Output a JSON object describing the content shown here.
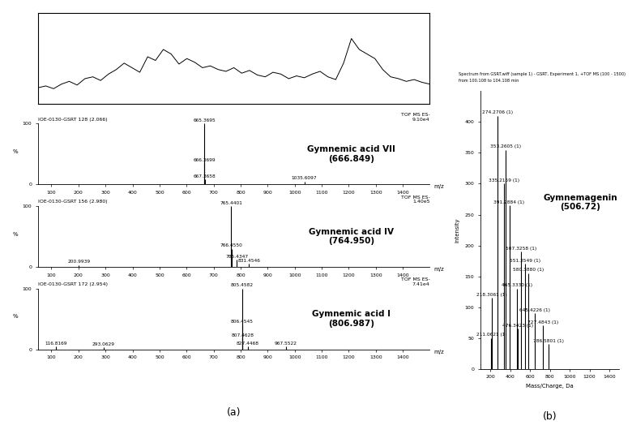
{
  "panel_labels": [
    "(a)",
    "(b)"
  ],
  "chart_data": [
    {
      "type": "line",
      "color": "#000000",
      "tick_labels": false,
      "xlim": [
        0,
        100
      ],
      "ylim": [
        0,
        100
      ],
      "x": [
        0,
        2,
        4,
        6,
        8,
        10,
        12,
        14,
        16,
        18,
        20,
        22,
        24,
        26,
        28,
        30,
        32,
        34,
        36,
        38,
        40,
        42,
        44,
        46,
        48,
        50,
        52,
        54,
        56,
        58,
        60,
        62,
        64,
        66,
        68,
        70,
        72,
        74,
        76,
        78,
        80,
        82,
        84,
        86,
        88,
        90,
        92,
        94,
        96,
        98,
        100
      ],
      "values": [
        18,
        20,
        17,
        22,
        25,
        21,
        28,
        30,
        26,
        33,
        38,
        45,
        40,
        35,
        52,
        48,
        60,
        55,
        44,
        50,
        46,
        40,
        42,
        38,
        36,
        40,
        34,
        37,
        32,
        30,
        35,
        33,
        28,
        31,
        29,
        33,
        36,
        30,
        27,
        45,
        72,
        60,
        55,
        50,
        38,
        30,
        28,
        25,
        27,
        24,
        22
      ]
    },
    {
      "type": "stem",
      "color": "#000000",
      "title": "IOE-0130-GSRT 128 (2.066)",
      "subtitle": "TOF MS ES-",
      "intensity": "9.10e4",
      "compound": "Gymnemic acid VII",
      "mass": "(666.849)",
      "xlabel": "m/z",
      "ylabel": "%",
      "xlim": [
        50,
        1500
      ],
      "ylim": [
        0,
        100
      ],
      "xticks": [
        100,
        200,
        300,
        400,
        500,
        600,
        700,
        800,
        900,
        1000,
        1100,
        1200,
        1300,
        1400
      ],
      "yticks": [
        0,
        100
      ],
      "x": [
        665.3695,
        666.3699,
        667.3658,
        1035.6097
      ],
      "values": [
        100,
        35,
        8,
        5
      ],
      "point_labels": [
        "665.3695",
        "666.3699",
        "667.3658",
        "1035.6097"
      ]
    },
    {
      "type": "stem",
      "color": "#000000",
      "title": "IOE-0130-GSRT 156 (2.980)",
      "subtitle": "TOF MS ES-",
      "intensity": "1.40e5",
      "compound": "Gymnemic acid IV",
      "mass": "(764.950)",
      "xlabel": "m/z",
      "ylabel": "%",
      "xlim": [
        50,
        1500
      ],
      "ylim": [
        0,
        100
      ],
      "xticks": [
        100,
        200,
        300,
        400,
        500,
        600,
        700,
        800,
        900,
        1000,
        1100,
        1200,
        1300,
        1400
      ],
      "yticks": [
        0,
        100
      ],
      "x": [
        200.9939,
        765.4401,
        766.455,
        785.4347,
        831.4546
      ],
      "values": [
        3,
        100,
        30,
        12,
        5
      ],
      "point_labels": [
        "200.9939",
        "765.4401",
        "766.4550",
        "785.4347",
        "831.4546"
      ]
    },
    {
      "type": "stem",
      "color": "#000000",
      "title": "IOE-0130-GSRT 172 (2.954)",
      "subtitle": "TOF MS ES-",
      "intensity": "7.41e4",
      "compound": "Gymnemic acid I",
      "mass": "(806.987)",
      "xlabel": "m/z",
      "ylabel": "%",
      "xlim": [
        50,
        1500
      ],
      "ylim": [
        0,
        100
      ],
      "xticks": [
        100,
        200,
        300,
        400,
        500,
        600,
        700,
        800,
        900,
        1000,
        1100,
        1200,
        1300,
        1400
      ],
      "yticks": [
        0,
        100
      ],
      "x": [
        116.8169,
        293.0629,
        805.4582,
        806.4545,
        807.4628,
        827.4468,
        967.5522
      ],
      "values": [
        5,
        3,
        100,
        40,
        18,
        5,
        5
      ],
      "point_labels": [
        "116.8169",
        "293.0629",
        "805.4582",
        "806.4545",
        "807.4628",
        "827.4468",
        "967.5522"
      ]
    },
    {
      "type": "stem",
      "color": "#000000",
      "title": "Spectrum from GSRT.wiff (sample 1) - GSRT, Experiment 1, +TOF MS (100 - 1500)",
      "subtitle": "from 100.108 to 104.108 min",
      "compound": "Gymnemagenin",
      "mass": "(506.72)",
      "xlabel": "Mass/Charge, Da",
      "ylabel": "Intensity",
      "xlim": [
        100,
        1500
      ],
      "ylim": [
        0,
        450
      ],
      "xticks": [
        200,
        400,
        600,
        800,
        1000,
        1200,
        1400
      ],
      "yticks": [
        0,
        50,
        100,
        150,
        200,
        250,
        300,
        350,
        400
      ],
      "x": [
        211.0621,
        218.3061,
        274.2706,
        335.2159,
        353.2605,
        391.2884,
        465.333,
        476.3423,
        507.3258,
        551.3549,
        580.388,
        645.4226,
        727.4843,
        786.5801
      ],
      "values": [
        50,
        115,
        410,
        300,
        355,
        265,
        130,
        65,
        190,
        170,
        155,
        90,
        70,
        40
      ],
      "point_labels": [
        "211.0621 (1)",
        "218.3061 (1)",
        "274.2706 (1)",
        "335.2159 (1)",
        "353.2605 (1)",
        "391.2884 (1)",
        "465.3330 (1)",
        "476.3423 (1)",
        "507.3258 (1)",
        "551.3549 (1)",
        "580.3880 (1)",
        "645.4226 (1)",
        "727.4843 (1)",
        "786.5801 (1)"
      ]
    }
  ]
}
